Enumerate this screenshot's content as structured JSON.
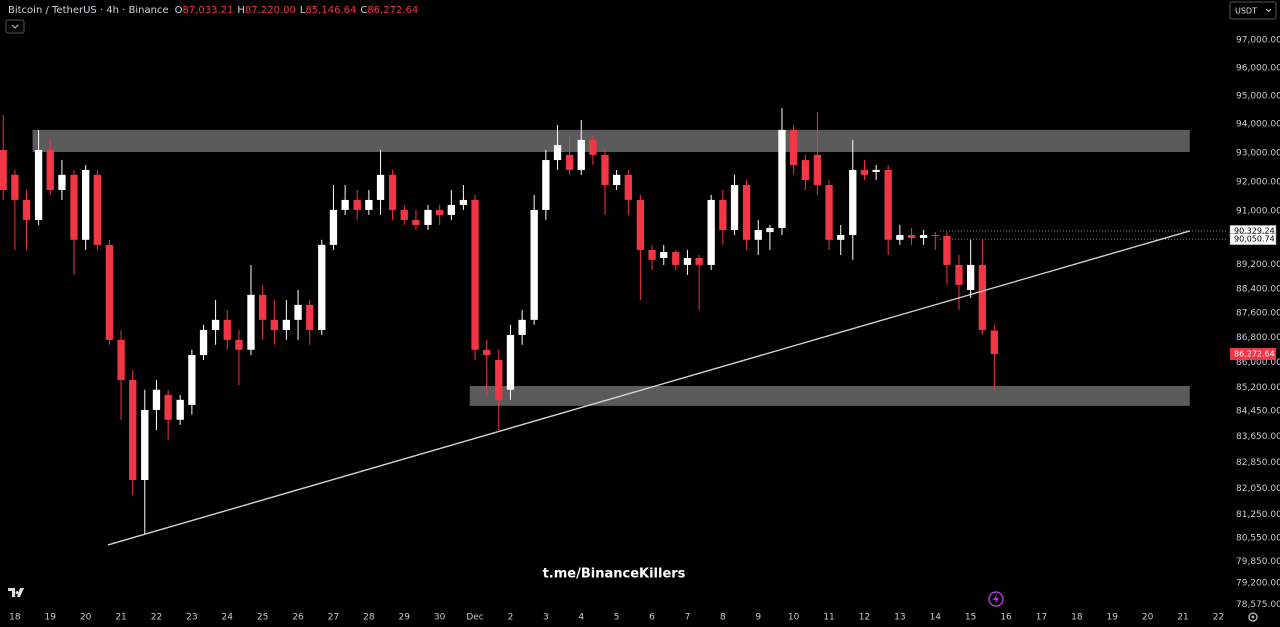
{
  "chart_data": {
    "type": "candlestick",
    "title": "Bitcoin / TetherUS · 4h · Binance",
    "ohlc_header": [
      {
        "prefix": "O",
        "label": "87,033.21"
      },
      {
        "prefix": "H",
        "label": "87,220.00"
      },
      {
        "prefix": "L",
        "label": "85,146.64"
      },
      {
        "prefix": "C",
        "label": "86,272.64"
      }
    ],
    "currency": "USDT",
    "watermark": "t.me/BinanceKillers",
    "log_scale": true,
    "grid": false,
    "up_color": "#ffffff",
    "down_color": "#f23645",
    "zone_color": "#6b6b6b",
    "line_color": "#d0d0d0",
    "xlim": [
      -0.42,
      34.27
    ],
    "ylim": [
      78470,
      98460
    ],
    "xticks": [
      {
        "value": 0,
        "label": "18"
      },
      {
        "value": 1,
        "label": "19"
      },
      {
        "value": 2,
        "label": "20"
      },
      {
        "value": 3,
        "label": "21"
      },
      {
        "value": 4,
        "label": "22"
      },
      {
        "value": 5,
        "label": "23"
      },
      {
        "value": 6,
        "label": "24"
      },
      {
        "value": 7,
        "label": "25"
      },
      {
        "value": 8,
        "label": "26"
      },
      {
        "value": 9,
        "label": "27"
      },
      {
        "value": 10,
        "label": "28"
      },
      {
        "value": 11,
        "label": "29"
      },
      {
        "value": 12,
        "label": "30"
      },
      {
        "value": 13,
        "label": "Dec"
      },
      {
        "value": 14,
        "label": "2"
      },
      {
        "value": 15,
        "label": "3"
      },
      {
        "value": 16,
        "label": "4"
      },
      {
        "value": 17,
        "label": "5"
      },
      {
        "value": 18,
        "label": "6"
      },
      {
        "value": 19,
        "label": "7"
      },
      {
        "value": 20,
        "label": "8"
      },
      {
        "value": 21,
        "label": "9"
      },
      {
        "value": 22,
        "label": "10"
      },
      {
        "value": 23,
        "label": "11"
      },
      {
        "value": 24,
        "label": "12"
      },
      {
        "value": 25,
        "label": "13"
      },
      {
        "value": 26,
        "label": "14"
      },
      {
        "value": 27,
        "label": "15"
      },
      {
        "value": 28,
        "label": "16"
      },
      {
        "value": 29,
        "label": "17"
      },
      {
        "value": 30,
        "label": "18"
      },
      {
        "value": 31,
        "label": "19"
      },
      {
        "value": 32,
        "label": "20"
      },
      {
        "value": 33,
        "label": "21"
      },
      {
        "value": 34,
        "label": "22"
      }
    ],
    "yticks": [
      {
        "value": 97000,
        "label": "97,000.00"
      },
      {
        "value": 96000,
        "label": "96,000.00"
      },
      {
        "value": 95000,
        "label": "95,000.00"
      },
      {
        "value": 94000,
        "label": "94,000.00"
      },
      {
        "value": 93000,
        "label": "93,000.00"
      },
      {
        "value": 92000,
        "label": "92,000.00"
      },
      {
        "value": 91000,
        "label": "91,000.00"
      },
      {
        "value": 89200,
        "label": "89,200.00"
      },
      {
        "value": 88400,
        "label": "88,400.00"
      },
      {
        "value": 87600,
        "label": "87,600.00"
      },
      {
        "value": 86800,
        "label": "86,800.00"
      },
      {
        "value": 86000,
        "label": "86,000.00"
      },
      {
        "value": 85200,
        "label": "85,200.00"
      },
      {
        "value": 84450,
        "label": "84,450.00"
      },
      {
        "value": 83650,
        "label": "83,650.00"
      },
      {
        "value": 82850,
        "label": "82,850.00"
      },
      {
        "value": 82050,
        "label": "82,050.00"
      },
      {
        "value": 81250,
        "label": "81,250.00"
      },
      {
        "value": 80550,
        "label": "80,550.00"
      },
      {
        "value": 79850,
        "label": "79,850.00"
      },
      {
        "value": 79200,
        "label": "79,200.00"
      },
      {
        "value": 78575,
        "label": "78,575.00"
      }
    ],
    "price_lines": [
      {
        "value": 90329.24,
        "label": "90,329.24"
      },
      {
        "value": 90050.74,
        "label": "90,050.74"
      }
    ],
    "last_price": {
      "value": 86272.64,
      "label": "86,272.64"
    },
    "zones": [
      {
        "x": [
          0.5,
          33.19
        ],
        "y": [
          93030,
          93800
        ]
      },
      {
        "x": [
          12.85,
          33.19
        ],
        "y": [
          84620,
          85250
        ]
      }
    ],
    "trendline": {
      "x": [
        2.63,
        33.19
      ],
      "y": [
        80340,
        90330
      ]
    },
    "candles": {
      "x": [
        -0.33,
        0,
        0.33,
        0.67,
        1,
        1.33,
        1.67,
        2,
        2.33,
        2.67,
        3,
        3.33,
        3.67,
        4,
        4.33,
        4.67,
        5,
        5.33,
        5.67,
        6,
        6.33,
        6.67,
        7,
        7.33,
        7.67,
        8,
        8.33,
        8.67,
        9,
        9.33,
        9.67,
        10,
        10.33,
        10.67,
        11,
        11.33,
        11.67,
        12,
        12.33,
        12.67,
        13,
        13.33,
        13.67,
        14,
        14.33,
        14.67,
        15,
        15.33,
        15.67,
        16,
        16.33,
        16.67,
        17,
        17.33,
        17.67,
        18,
        18.33,
        18.67,
        19,
        19.33,
        19.67,
        20,
        20.33,
        20.67,
        21,
        21.33,
        21.67,
        22,
        22.33,
        22.67,
        23,
        23.33,
        23.67,
        24,
        24.33,
        24.67,
        25,
        25.33,
        25.67,
        26,
        26.33,
        26.67,
        27,
        27.33,
        27.67
      ],
      "open": [
        93100,
        92240,
        91380,
        90700,
        93100,
        91720,
        92240,
        90030,
        92240,
        89860,
        86730,
        85440,
        82310,
        84490,
        84970,
        84180,
        84650,
        86240,
        87050,
        87380,
        86730,
        86410,
        88200,
        87380,
        87050,
        87380,
        87870,
        87050,
        89860,
        91040,
        91380,
        91040,
        91380,
        92240,
        91040,
        90700,
        90530,
        91040,
        90870,
        91210,
        91380,
        86410,
        86080,
        85130,
        86890,
        87380,
        91040,
        92750,
        92930,
        92410,
        93450,
        92930,
        91890,
        92240,
        91380,
        89690,
        89420,
        89620,
        89190,
        89420,
        89190,
        91380,
        90360,
        91890,
        90030,
        90290,
        90430,
        93800,
        92750,
        92930,
        91890,
        90030,
        90190,
        92410,
        92340,
        92410,
        90030,
        90190,
        90090,
        90190,
        90160,
        89190,
        88360,
        89190,
        87033.21
      ],
      "high": [
        94320,
        92410,
        91720,
        93800,
        93450,
        92750,
        92410,
        92580,
        92410,
        90030,
        87050,
        85760,
        85130,
        85440,
        85130,
        84970,
        86410,
        87220,
        88030,
        87700,
        87050,
        89190,
        88530,
        88030,
        88030,
        88360,
        88030,
        90030,
        91890,
        91890,
        91720,
        91720,
        93100,
        92410,
        91210,
        91040,
        91210,
        91210,
        91720,
        91890,
        91550,
        86730,
        86410,
        87220,
        87700,
        91550,
        93100,
        93970,
        93620,
        94150,
        93620,
        93100,
        92410,
        92410,
        91550,
        89860,
        89860,
        89690,
        89690,
        89520,
        91550,
        91720,
        92240,
        92060,
        90700,
        90530,
        94570,
        93970,
        92930,
        94430,
        92060,
        90530,
        93450,
        92750,
        92580,
        92580,
        90530,
        90430,
        90360,
        90290,
        90290,
        89520,
        90030,
        90030,
        87220
      ],
      "low": [
        91380,
        89690,
        89690,
        90530,
        91550,
        91380,
        88860,
        89690,
        89690,
        86570,
        84180,
        81850,
        80640,
        83860,
        83550,
        84020,
        84340,
        86080,
        86570,
        86410,
        85280,
        86240,
        86730,
        86570,
        86730,
        86730,
        86570,
        86890,
        89690,
        90870,
        90700,
        90870,
        90870,
        90700,
        90530,
        90360,
        90360,
        90530,
        90700,
        91040,
        86080,
        84970,
        83860,
        84810,
        86570,
        87220,
        90700,
        92410,
        92240,
        92240,
        92580,
        90870,
        91720,
        90870,
        88030,
        89020,
        89190,
        89020,
        88860,
        87700,
        89020,
        89860,
        90190,
        89690,
        89520,
        89690,
        90190,
        92240,
        91720,
        91550,
        89690,
        89520,
        89360,
        92060,
        92060,
        89520,
        89860,
        89860,
        89860,
        89690,
        88530,
        87700,
        88100,
        86890,
        85146.64
      ],
      "close": [
        91720,
        91380,
        90700,
        93100,
        91720,
        92240,
        90030,
        92410,
        89860,
        86730,
        85440,
        82310,
        84490,
        85130,
        84180,
        84810,
        86240,
        87050,
        87380,
        86730,
        86410,
        88200,
        87380,
        87050,
        87380,
        87870,
        87050,
        89860,
        91040,
        91380,
        91040,
        91380,
        92240,
        91040,
        90700,
        90530,
        91040,
        90870,
        91210,
        91380,
        86410,
        86240,
        84810,
        86890,
        87380,
        91040,
        92750,
        93270,
        92410,
        93450,
        92930,
        91890,
        92240,
        91380,
        89690,
        89360,
        89620,
        89190,
        89420,
        89190,
        91380,
        90360,
        91890,
        90030,
        90360,
        90430,
        93800,
        92580,
        92060,
        91890,
        90030,
        90190,
        92410,
        92240,
        92410,
        90030,
        90190,
        90090,
        90190,
        90160,
        89190,
        88530,
        89190,
        87050,
        86272.64
      ]
    }
  }
}
